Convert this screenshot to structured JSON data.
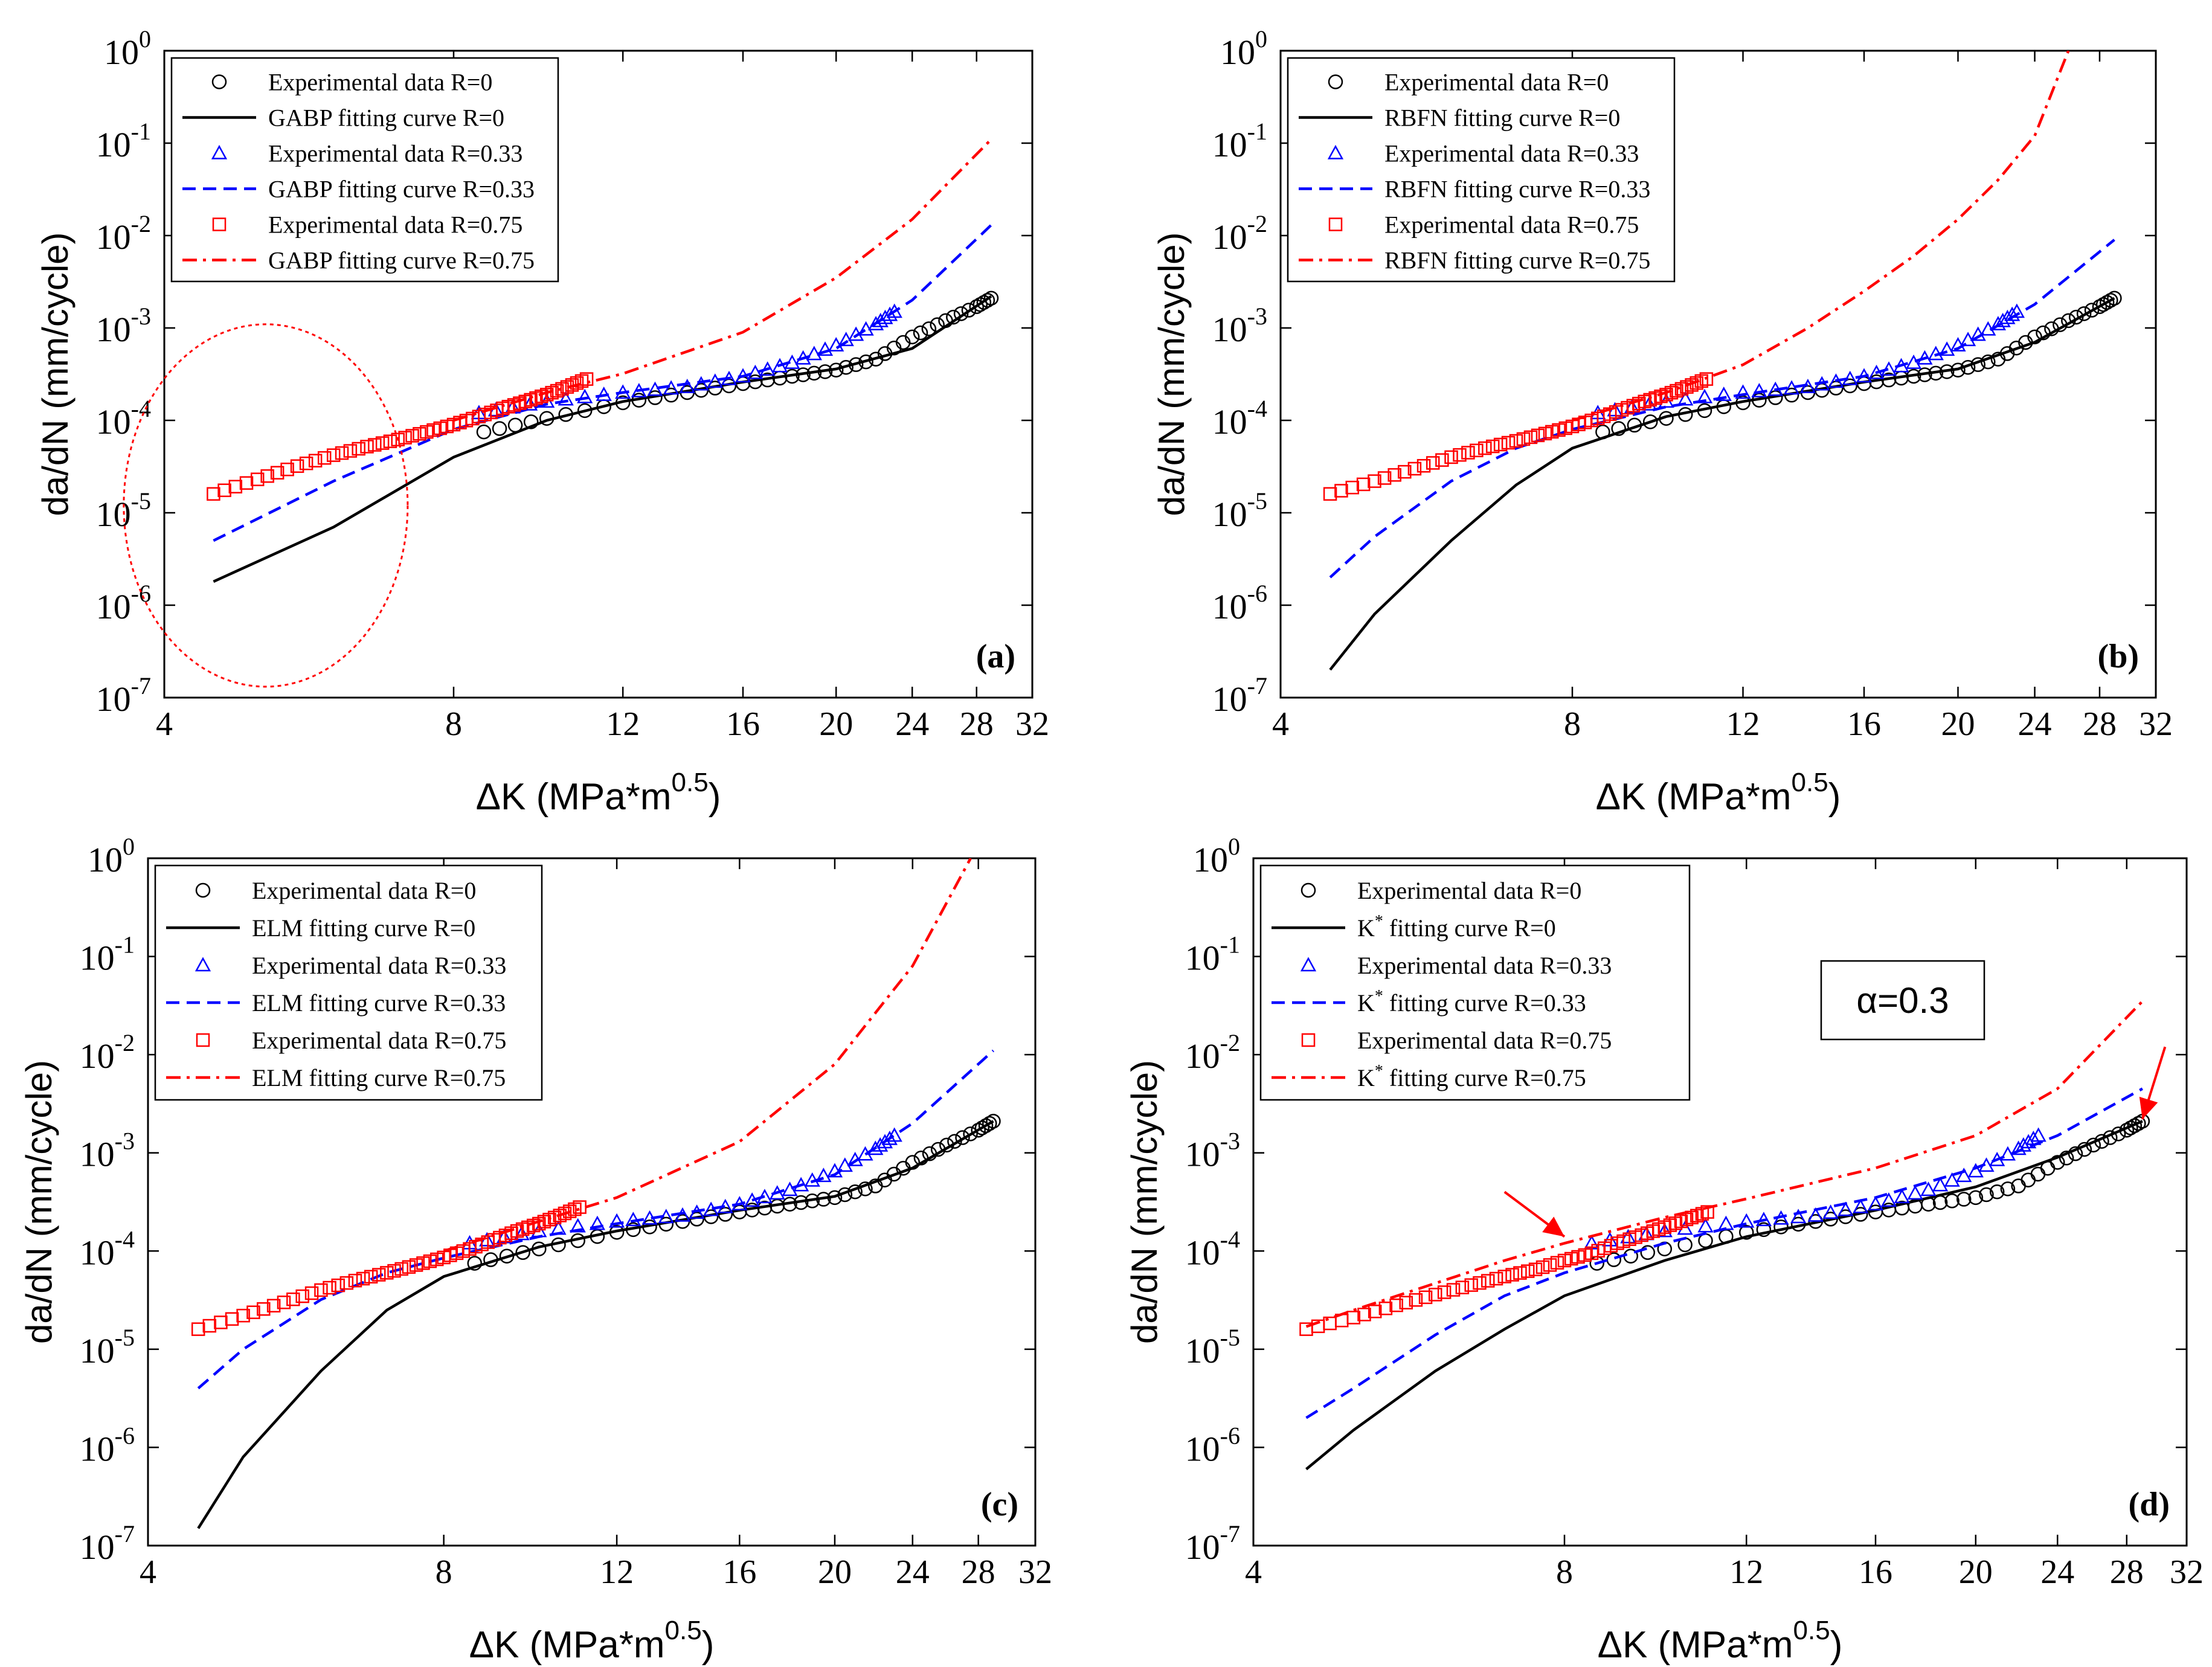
{
  "figure": {
    "colors": {
      "r0": "#000000",
      "r033": "#0000ff",
      "r075": "#ff0000"
    },
    "ylabel": "da/dN (mm/cycle)",
    "xlabel_main": "ΔK (MPa*m",
    "xlabel_exp": "0.5",
    "xlabel_close": ")",
    "x_ticks": [
      "4",
      "8",
      "12",
      "16",
      "20",
      "24",
      "28",
      "32"
    ],
    "y_tick_base": "10",
    "y_tick_exps": [
      "0",
      "-1",
      "-2",
      "-3",
      "-4",
      "-5",
      "-6",
      "-7"
    ]
  },
  "chart_data": [
    {
      "type": "line",
      "panel": "(a)",
      "method": "GABP",
      "x_scale": "log2",
      "y_scale": "log10",
      "xlim": [
        4,
        32
      ],
      "ylim": [
        1e-07,
        1
      ],
      "legend_position": "top-left",
      "legend": [
        "Experimental data R=0",
        "GABP fitting curve R=0",
        "Experimental data R=0.33",
        "GABP fitting curve R=0.33",
        "Experimental data R=0.75",
        "GABP fitting curve R=0.75"
      ],
      "series": [
        {
          "name": "Experimental data R=0",
          "marker": "circle",
          "x": [
            8.6,
            10,
            12,
            14,
            16,
            18,
            20,
            22,
            24,
            26,
            28,
            29
          ],
          "y": [
            7.5e-05,
            0.000105,
            0.000155,
            0.0002,
            0.00025,
            0.0003,
            0.00035,
            0.00046,
            0.0008,
            0.0012,
            0.0017,
            0.0021
          ]
        },
        {
          "name": "GABP fitting curve R=0",
          "line": "solid",
          "x": [
            4.5,
            6,
            8,
            10,
            12,
            16,
            20,
            24,
            29
          ],
          "y": [
            1.8e-06,
            7e-06,
            4e-05,
            0.0001,
            0.00016,
            0.00026,
            0.00036,
            0.0006,
            0.0022
          ]
        },
        {
          "name": "Experimental data R=0.33",
          "marker": "triangle",
          "x": [
            8.5,
            10,
            12,
            14,
            16,
            18,
            20,
            22,
            23
          ],
          "y": [
            0.00012,
            0.00016,
            0.0002,
            0.00023,
            0.0003,
            0.00042,
            0.00065,
            0.0011,
            0.0015
          ]
        },
        {
          "name": "GABP fitting curve R=0.33",
          "line": "dashed",
          "x": [
            4.5,
            6,
            8,
            10,
            12,
            16,
            20,
            24,
            29
          ],
          "y": [
            5e-06,
            2.2e-05,
            8e-05,
            0.00015,
            0.0002,
            0.0003,
            0.0006,
            0.002,
            0.013
          ]
        },
        {
          "name": "Experimental data R=0.75",
          "marker": "square",
          "x": [
            4.5,
            5,
            5.5,
            6,
            6.5,
            7,
            7.5,
            8,
            8.5,
            9,
            9.5,
            10,
            10.5,
            11
          ],
          "y": [
            1.6e-05,
            2.3e-05,
            3.2e-05,
            4.2e-05,
            5.2e-05,
            6.2e-05,
            7.5e-05,
            9e-05,
            0.00011,
            0.000135,
            0.00016,
            0.00019,
            0.00023,
            0.00028
          ]
        },
        {
          "name": "GABP fitting curve R=0.75",
          "line": "dashdot",
          "x": [
            8,
            10,
            12,
            16,
            20,
            24,
            29
          ],
          "y": [
            0.0001,
            0.0002,
            0.00032,
            0.0009,
            0.0035,
            0.015,
            0.11
          ]
        }
      ]
    },
    {
      "type": "line",
      "panel": "(b)",
      "method": "RBFN",
      "x_scale": "log2",
      "y_scale": "log10",
      "xlim": [
        4,
        32
      ],
      "ylim": [
        1e-07,
        1
      ],
      "legend_position": "top-left",
      "legend": [
        "Experimental data R=0",
        "RBFN fitting curve R=0",
        "Experimental data R=0.33",
        "RBFN fitting curve R=0.33",
        "Experimental data R=0.75",
        "RBFN fitting curve R=0.75"
      ],
      "series": [
        {
          "name": "Experimental data R=0",
          "marker": "circle",
          "x": [
            8.6,
            10,
            12,
            14,
            16,
            18,
            20,
            22,
            24,
            26,
            28,
            29
          ],
          "y": [
            7.5e-05,
            0.000105,
            0.000155,
            0.0002,
            0.00025,
            0.0003,
            0.00035,
            0.00046,
            0.0008,
            0.0012,
            0.0017,
            0.0021
          ]
        },
        {
          "name": "RBFN fitting curve R=0",
          "line": "solid",
          "x": [
            4.5,
            5,
            6,
            7,
            8,
            10,
            12,
            16,
            20,
            24,
            29
          ],
          "y": [
            2e-07,
            8e-07,
            5e-06,
            2e-05,
            5e-05,
            0.00011,
            0.00016,
            0.00026,
            0.00036,
            0.0007,
            0.0021
          ]
        },
        {
          "name": "Experimental data R=0.33",
          "marker": "triangle",
          "x": [
            8.5,
            10,
            12,
            14,
            16,
            18,
            20,
            22,
            23
          ],
          "y": [
            0.00012,
            0.00016,
            0.0002,
            0.00023,
            0.0003,
            0.00042,
            0.00065,
            0.0011,
            0.0015
          ]
        },
        {
          "name": "RBFN fitting curve R=0.33",
          "line": "dashed",
          "x": [
            4.5,
            5,
            6,
            7,
            8,
            10,
            12,
            16,
            20,
            24,
            29
          ],
          "y": [
            2e-06,
            5.5e-06,
            2.2e-05,
            5e-05,
            8e-05,
            0.00014,
            0.00019,
            0.0003,
            0.0006,
            0.0018,
            0.009
          ]
        },
        {
          "name": "Experimental data R=0.75",
          "marker": "square",
          "x": [
            4.5,
            5,
            5.5,
            6,
            6.5,
            7,
            7.5,
            8,
            8.5,
            9,
            9.5,
            10,
            10.5,
            11
          ],
          "y": [
            1.6e-05,
            2.2e-05,
            3e-05,
            4e-05,
            5e-05,
            6e-05,
            7.2e-05,
            8.6e-05,
            0.000105,
            0.00013,
            0.00016,
            0.00019,
            0.00023,
            0.00028
          ]
        },
        {
          "name": "RBFN fitting curve R=0.75",
          "line": "dashdot",
          "x": [
            8,
            10,
            12,
            14,
            16,
            18,
            20,
            22,
            24,
            26
          ],
          "y": [
            0.0001,
            0.0002,
            0.0004,
            0.001,
            0.0025,
            0.006,
            0.015,
            0.04,
            0.12,
            1.0
          ]
        }
      ]
    },
    {
      "type": "line",
      "panel": "(c)",
      "method": "ELM",
      "x_scale": "log2",
      "y_scale": "log10",
      "xlim": [
        4,
        32
      ],
      "ylim": [
        1e-07,
        1
      ],
      "legend_position": "top-left",
      "legend": [
        "Experimental data R=0",
        "ELM fitting curve R=0",
        "Experimental data R=0.33",
        "ELM fitting curve R=0.33",
        "Experimental data R=0.75",
        "ELM fitting curve R=0.75"
      ],
      "series": [
        {
          "name": "Experimental data R=0",
          "marker": "circle",
          "x": [
            8.6,
            10,
            12,
            14,
            16,
            18,
            20,
            22,
            24,
            26,
            28,
            29
          ],
          "y": [
            7.5e-05,
            0.000105,
            0.000155,
            0.0002,
            0.00025,
            0.0003,
            0.00035,
            0.00046,
            0.0008,
            0.0012,
            0.0017,
            0.0021
          ]
        },
        {
          "name": "ELM fitting curve R=0",
          "line": "solid",
          "x": [
            4.5,
            5,
            6,
            7,
            8,
            10,
            12,
            16,
            20,
            24,
            29
          ],
          "y": [
            1.5e-07,
            8e-07,
            6e-06,
            2.5e-05,
            5.5e-05,
            0.00011,
            0.00016,
            0.00026,
            0.00036,
            0.0007,
            0.0021
          ]
        },
        {
          "name": "Experimental data R=0.33",
          "marker": "triangle",
          "x": [
            8.5,
            10,
            12,
            14,
            16,
            18,
            20,
            22,
            23
          ],
          "y": [
            0.00012,
            0.00016,
            0.0002,
            0.00023,
            0.0003,
            0.00042,
            0.00065,
            0.0011,
            0.0015
          ]
        },
        {
          "name": "ELM fitting curve R=0.33",
          "line": "dashed",
          "x": [
            4.5,
            5,
            6,
            7,
            8,
            10,
            12,
            16,
            20,
            24,
            29
          ],
          "y": [
            4e-06,
            1e-05,
            3.2e-05,
            6e-05,
            8.5e-05,
            0.00014,
            0.00019,
            0.0003,
            0.0006,
            0.002,
            0.011
          ]
        },
        {
          "name": "Experimental data R=0.75",
          "marker": "square",
          "x": [
            4.5,
            5,
            5.5,
            6,
            6.5,
            7,
            7.5,
            8,
            8.5,
            9,
            9.5,
            10,
            10.5,
            11
          ],
          "y": [
            1.6e-05,
            2.2e-05,
            3e-05,
            4e-05,
            5e-05,
            6e-05,
            7.2e-05,
            8.6e-05,
            0.000105,
            0.00013,
            0.00016,
            0.00019,
            0.00023,
            0.00028
          ]
        },
        {
          "name": "ELM fitting curve R=0.75",
          "line": "dashdot",
          "x": [
            8,
            10,
            12,
            16,
            20,
            24,
            27.5
          ],
          "y": [
            0.0001,
            0.0002,
            0.00035,
            0.0013,
            0.008,
            0.08,
            1.0
          ]
        }
      ]
    },
    {
      "type": "line",
      "panel": "(d)",
      "method": "K*",
      "x_scale": "log2",
      "y_scale": "log10",
      "xlim": [
        4,
        32
      ],
      "ylim": [
        1e-07,
        1
      ],
      "legend_position": "top-left",
      "annotation": "α=0.3",
      "legend": [
        {
          "pre": "Experimental data R=0",
          "sup": "",
          "post": ""
        },
        {
          "pre": "K",
          "sup": "*",
          "post": " fitting curve R=0"
        },
        {
          "pre": "Experimental data R=0.33",
          "sup": "",
          "post": ""
        },
        {
          "pre": "K",
          "sup": "*",
          "post": " fitting curve R=0.33"
        },
        {
          "pre": "Experimental data R=0.75",
          "sup": "",
          "post": ""
        },
        {
          "pre": "K",
          "sup": "*",
          "post": " fitting curve R=0.75"
        }
      ],
      "series": [
        {
          "name": "Experimental data R=0",
          "marker": "circle",
          "x": [
            8.6,
            10,
            12,
            14,
            16,
            18,
            20,
            22,
            24,
            26,
            28,
            29
          ],
          "y": [
            7.5e-05,
            0.000105,
            0.000155,
            0.0002,
            0.00025,
            0.0003,
            0.00035,
            0.00046,
            0.0008,
            0.0012,
            0.0017,
            0.0021
          ]
        },
        {
          "name": "K* fitting curve R=0",
          "line": "solid",
          "x": [
            4.5,
            5,
            6,
            7,
            8,
            10,
            12,
            16,
            20,
            24,
            29
          ],
          "y": [
            6e-07,
            1.5e-06,
            6e-06,
            1.6e-05,
            3.5e-05,
            8e-05,
            0.00014,
            0.00026,
            0.00045,
            0.0009,
            0.0021
          ]
        },
        {
          "name": "Experimental data R=0.33",
          "marker": "triangle",
          "x": [
            8.5,
            10,
            12,
            14,
            16,
            18,
            20,
            22,
            23
          ],
          "y": [
            0.00012,
            0.00016,
            0.0002,
            0.00023,
            0.0003,
            0.00042,
            0.00065,
            0.0011,
            0.0015
          ]
        },
        {
          "name": "K* fitting curve R=0.33",
          "line": "dashed",
          "x": [
            4.5,
            5,
            6,
            7,
            8,
            10,
            12,
            16,
            20,
            24,
            29
          ],
          "y": [
            2e-06,
            4e-06,
            1.4e-05,
            3.5e-05,
            6e-05,
            0.00012,
            0.00019,
            0.00035,
            0.0007,
            0.0015,
            0.0045
          ]
        },
        {
          "name": "Experimental data R=0.75",
          "marker": "square",
          "x": [
            4.5,
            5,
            5.5,
            6,
            6.5,
            7,
            7.5,
            8,
            8.5,
            9,
            9.5,
            10,
            10.5,
            11
          ],
          "y": [
            1.6e-05,
            2.1e-05,
            2.8e-05,
            3.6e-05,
            4.5e-05,
            5.5e-05,
            6.5e-05,
            8e-05,
            9.5e-05,
            0.00012,
            0.000145,
            0.000175,
            0.00021,
            0.00025
          ]
        },
        {
          "name": "K* fitting curve R=0.75",
          "line": "dashdot",
          "x": [
            4.5,
            5,
            6,
            7,
            8,
            10,
            12,
            16,
            20,
            24,
            29
          ],
          "y": [
            1.7e-05,
            2.5e-05,
            4.7e-05,
            8e-05,
            0.00012,
            0.00022,
            0.00034,
            0.0007,
            0.0015,
            0.0045,
            0.035
          ]
        }
      ]
    }
  ]
}
